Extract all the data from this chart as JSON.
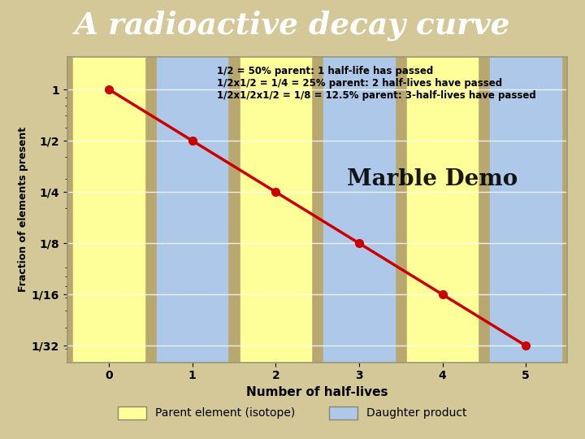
{
  "title": "A radioactive decay curve",
  "title_color": "#FFFFFF",
  "title_bg_color": "#1a1a6e",
  "x_label": "Number of half-lives",
  "y_label": "Fraction of elements present",
  "x_values": [
    0,
    1,
    2,
    3,
    4,
    5
  ],
  "y_values": [
    1.0,
    0.5,
    0.25,
    0.125,
    0.0625,
    0.03125
  ],
  "y_ticks": [
    0.03125,
    0.0625,
    0.125,
    0.25,
    0.5,
    1.0
  ],
  "y_tick_labels": [
    "1/32",
    "1/16",
    "1/8",
    "1/4",
    "1/2",
    "1"
  ],
  "curve_color": "#cc0000",
  "marker_color": "#cc0000",
  "parent_color": "#ffff88",
  "daughter_color": "#aaccee",
  "bg_color": "#c8b87a",
  "plot_bg_color": "#b8a870",
  "frame_color": "#d4c898",
  "outer_frame_color": "#c8b870",
  "col_colors": [
    "yellow",
    "blue",
    "yellow",
    "blue",
    "yellow",
    "blue"
  ],
  "annotation_line1": "1/2 = 50% parent: 1 half-life has passed",
  "annotation_line2": "1/2x1/2 = 1/4 = 25% parent: 2 half-lives have passed",
  "annotation_line3": "1/2x1/2x1/2 = 1/8 = 12.5% parent: 3-half-lives have passed",
  "watermark": "Marble Demo",
  "legend_parent": "Parent element (isotope)",
  "legend_daughter": "Daughter product"
}
